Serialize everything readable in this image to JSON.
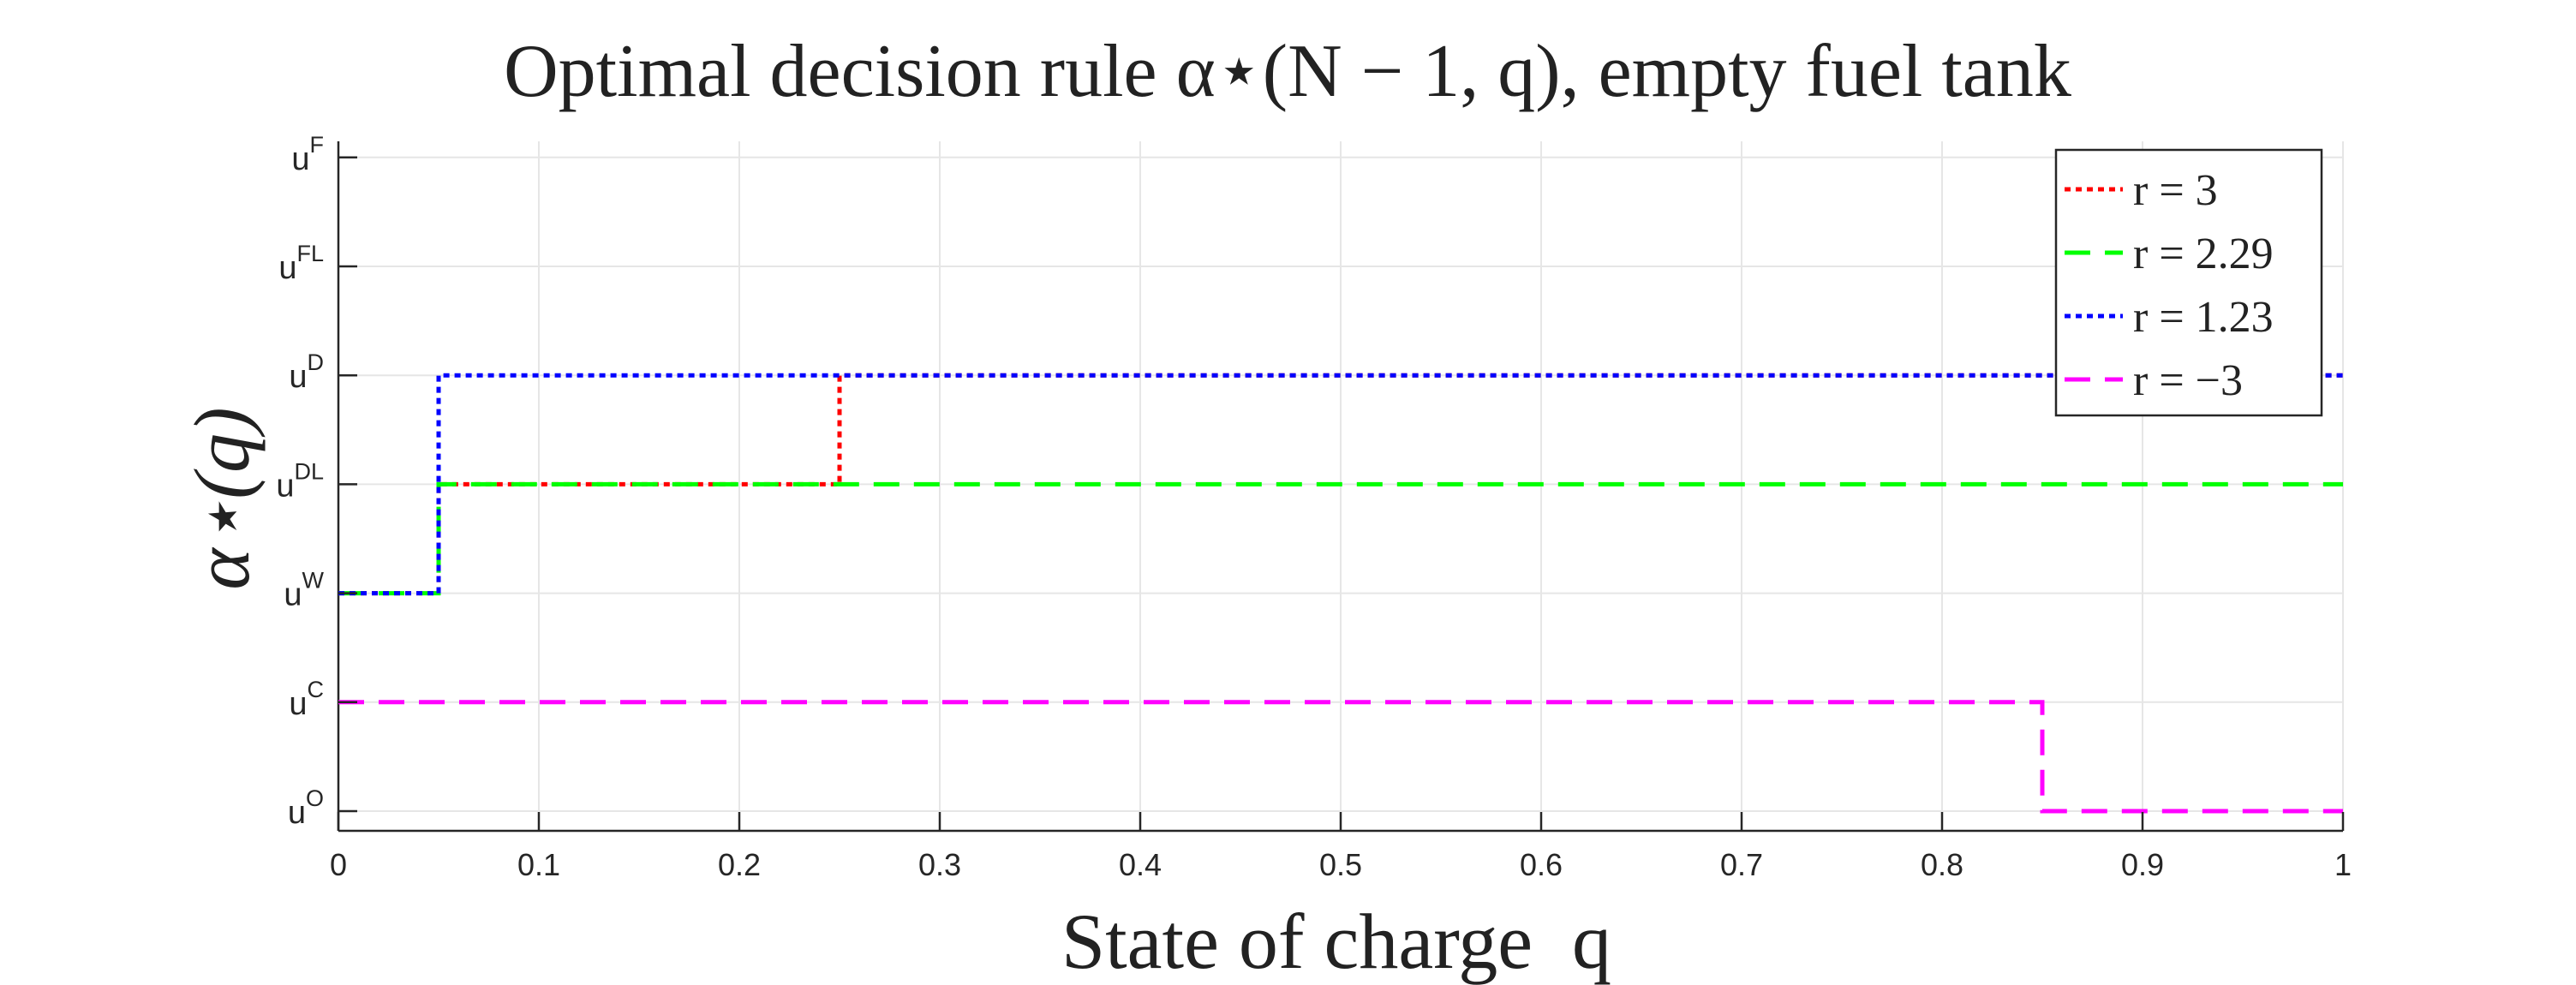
{
  "chart_data": {
    "type": "line",
    "title": "Optimal decision rule α⋆(N − 1, q), empty fuel tank",
    "xlabel": "State of charge  q",
    "ylabel": "α⋆(q)",
    "xlim": [
      0,
      1
    ],
    "x_ticks": [
      "0",
      "0.1",
      "0.2",
      "0.3",
      "0.4",
      "0.5",
      "0.6",
      "0.7",
      "0.8",
      "0.9",
      "1"
    ],
    "y_categories": [
      {
        "base": "u",
        "sup": "O"
      },
      {
        "base": "u",
        "sup": "C"
      },
      {
        "base": "u",
        "sup": "W"
      },
      {
        "base": "u",
        "sup": "DL"
      },
      {
        "base": "u",
        "sup": "D"
      },
      {
        "base": "u",
        "sup": "FL"
      },
      {
        "base": "u",
        "sup": "F"
      }
    ],
    "grid": true,
    "legend_position": "top-right",
    "series": [
      {
        "name": "r = 3",
        "color": "#ff0000",
        "dash": "dotted",
        "points": [
          [
            0,
            "uW"
          ],
          [
            0.05,
            "uW"
          ],
          [
            0.05,
            "uDL"
          ],
          [
            0.25,
            "uDL"
          ],
          [
            0.25,
            "uD"
          ],
          [
            1,
            "uD"
          ]
        ]
      },
      {
        "name": "r = 2.29",
        "color": "#00ff00",
        "dash": "dashed",
        "points": [
          [
            0,
            "uW"
          ],
          [
            0.05,
            "uW"
          ],
          [
            0.05,
            "uDL"
          ],
          [
            1,
            "uDL"
          ]
        ]
      },
      {
        "name": "r = 1.23",
        "color": "#0000ff",
        "dash": "dotted",
        "points": [
          [
            0,
            "uW"
          ],
          [
            0.05,
            "uW"
          ],
          [
            0.05,
            "uD"
          ],
          [
            1,
            "uD"
          ]
        ]
      },
      {
        "name": "r = −3",
        "color": "#ff00ff",
        "dash": "dashed",
        "points": [
          [
            0,
            "uC"
          ],
          [
            0.85,
            "uC"
          ],
          [
            0.85,
            "uO"
          ],
          [
            1,
            "uO"
          ]
        ]
      }
    ]
  }
}
